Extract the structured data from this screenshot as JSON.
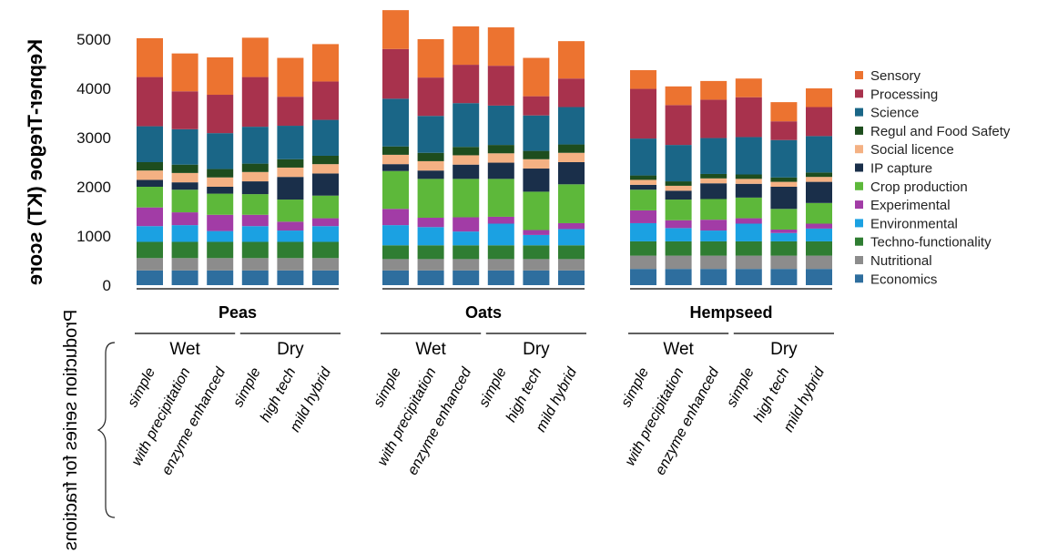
{
  "chart_data": {
    "type": "bar",
    "stacked": true,
    "ylabel": "Kepner-Tregoe (KT) score",
    "yticks": [
      0,
      1000,
      2000,
      3000,
      4000,
      5000
    ],
    "ylim": [
      0,
      5500
    ],
    "grid": false,
    "legend_position": "right",
    "xgroup_title": "Production series for fractions",
    "groups": [
      {
        "name": "Peas",
        "processes": [
          {
            "name": "Wet",
            "count": 3
          },
          {
            "name": "Dry",
            "count": 3
          }
        ]
      },
      {
        "name": "Oats",
        "processes": [
          {
            "name": "Wet",
            "count": 3
          },
          {
            "name": "Dry",
            "count": 3
          }
        ]
      },
      {
        "name": "Hempseed",
        "processes": [
          {
            "name": "Wet",
            "count": 3
          },
          {
            "name": "Dry",
            "count": 3
          }
        ]
      }
    ],
    "categories": [
      "simple",
      "with precipitation",
      "enzyme enhanced",
      "simple",
      "high tech",
      "mild hybrid",
      "simple",
      "with precipitation",
      "enzyme enhanced",
      "simple",
      "high tech",
      "mild hybrid",
      "simple",
      "with precipitation",
      "enzyme enhanced",
      "simple",
      "high tech",
      "mild hybrid"
    ],
    "series": [
      {
        "name": "Economics",
        "color": "#2e6e9e",
        "values": [
          300,
          300,
          300,
          300,
          300,
          300,
          300,
          300,
          300,
          300,
          300,
          300,
          330,
          330,
          330,
          330,
          330,
          330
        ]
      },
      {
        "name": "Nutritional",
        "color": "#8c8c8c",
        "values": [
          250,
          250,
          250,
          250,
          250,
          250,
          230,
          230,
          230,
          230,
          230,
          230,
          270,
          270,
          270,
          270,
          270,
          270
        ]
      },
      {
        "name": "Techno-functionality",
        "color": "#2f7d32",
        "values": [
          330,
          330,
          330,
          330,
          330,
          330,
          280,
          280,
          280,
          280,
          280,
          280,
          290,
          290,
          290,
          290,
          290,
          290
        ]
      },
      {
        "name": "Environmental",
        "color": "#1ba1e2",
        "values": [
          320,
          340,
          220,
          320,
          230,
          320,
          410,
          370,
          280,
          440,
          210,
          330,
          370,
          270,
          220,
          360,
          170,
          260
        ]
      },
      {
        "name": "Experimental",
        "color": "#a23ca6",
        "values": [
          380,
          260,
          330,
          230,
          180,
          160,
          330,
          190,
          290,
          140,
          100,
          120,
          260,
          160,
          220,
          110,
          70,
          100
        ]
      },
      {
        "name": "Crop production",
        "color": "#5db83a",
        "values": [
          420,
          460,
          430,
          420,
          450,
          460,
          770,
          790,
          780,
          770,
          780,
          790,
          420,
          420,
          420,
          420,
          420,
          420
        ]
      },
      {
        "name": "IP capture",
        "color": "#1a2f4a",
        "values": [
          140,
          150,
          140,
          260,
          460,
          450,
          140,
          170,
          290,
          330,
          470,
          450,
          100,
          180,
          320,
          280,
          450,
          430
        ]
      },
      {
        "name": "Social licence",
        "color": "#f4b183",
        "values": [
          190,
          190,
          190,
          190,
          190,
          190,
          190,
          190,
          190,
          190,
          190,
          190,
          100,
          100,
          100,
          100,
          100,
          100
        ]
      },
      {
        "name": "Regul and Food Safety",
        "color": "#1e4d1e",
        "values": [
          170,
          170,
          170,
          170,
          170,
          170,
          170,
          170,
          170,
          170,
          170,
          170,
          90,
          90,
          90,
          90,
          90,
          90
        ]
      },
      {
        "name": "Science",
        "color": "#1a6687",
        "values": [
          730,
          720,
          730,
          750,
          680,
          730,
          970,
          750,
          890,
          800,
          720,
          760,
          750,
          740,
          730,
          760,
          760,
          740
        ]
      },
      {
        "name": "Processing",
        "color": "#a8324d",
        "values": [
          1000,
          770,
          780,
          1010,
          590,
          780,
          1010,
          780,
          780,
          810,
          390,
          580,
          1010,
          810,
          780,
          810,
          380,
          590
        ]
      },
      {
        "name": "Sensory",
        "color": "#ec7330",
        "values": [
          790,
          770,
          760,
          800,
          790,
          760,
          790,
          780,
          780,
          780,
          780,
          760,
          380,
          380,
          380,
          380,
          390,
          380
        ]
      }
    ]
  }
}
